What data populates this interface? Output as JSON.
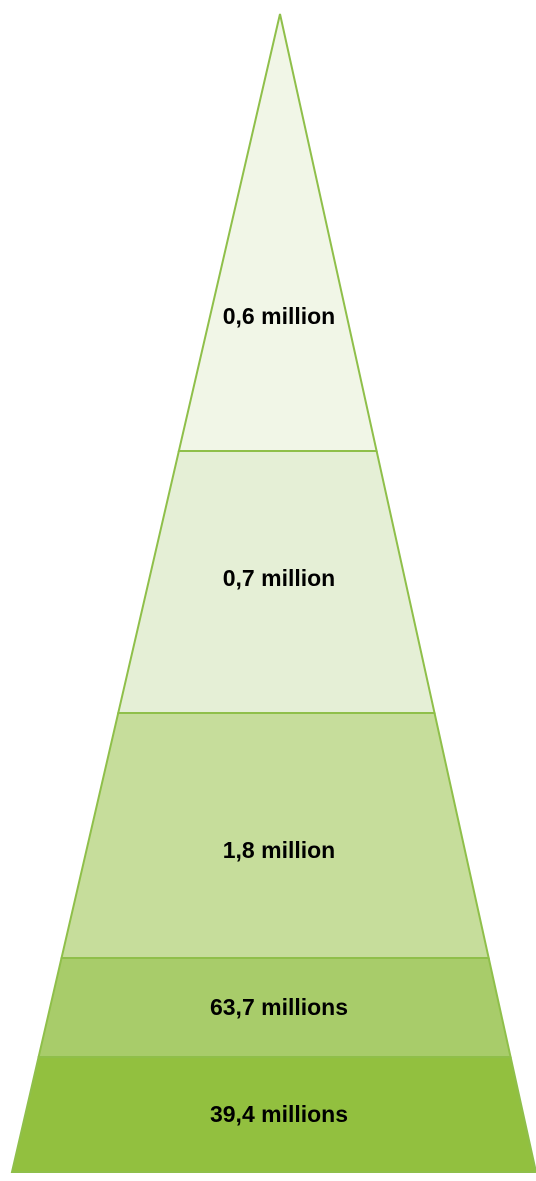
{
  "pyramid": {
    "tiers": [
      {
        "label": "0,6 million",
        "fill": "#f1f6e7",
        "stroke": "#8fbf4a"
      },
      {
        "label": "0,7 million",
        "fill": "#e5efd6",
        "stroke": "#8fbf4a"
      },
      {
        "label": "1,8 million",
        "fill": "#c6dd9b",
        "stroke": "#8fbf4a"
      },
      {
        "label": "63,7 millions",
        "fill": "#a8cc6a",
        "stroke": "#8fbf4a"
      },
      {
        "label": "39,4 millions",
        "fill": "#92c03f",
        "stroke": "#8fbf4a"
      }
    ]
  }
}
